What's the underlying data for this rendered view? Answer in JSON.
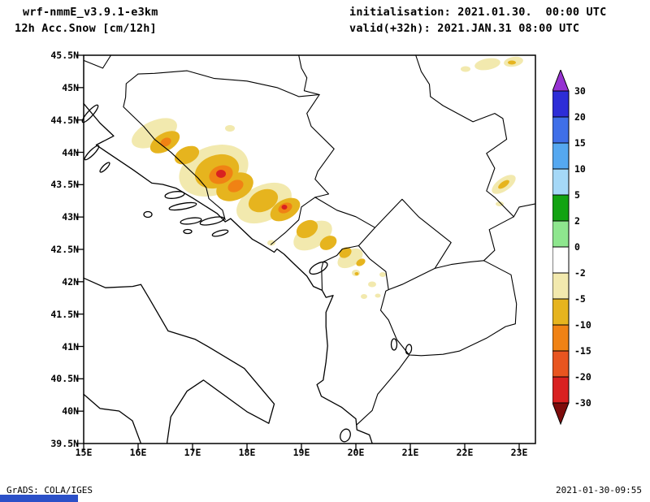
{
  "header": {
    "model": "wrf-nmmE_v3.9.1-e3km",
    "product": "12h Acc.Snow [cm/12h]",
    "init": "initialisation: 2021.01.30.  00:00 UTC",
    "valid": "valid(+32h): 2021.JAN.31 08:00 UTC"
  },
  "axes": {
    "lat_labels": [
      "45.5N",
      "45N",
      "44.5N",
      "44N",
      "43.5N",
      "43N",
      "42.5N",
      "42N",
      "41.5N",
      "41N",
      "40.5N",
      "40N",
      "39.5N"
    ],
    "lon_labels": [
      "15E",
      "16E",
      "17E",
      "18E",
      "19E",
      "20E",
      "21E",
      "22E",
      "23E"
    ]
  },
  "colorbar": {
    "labels": [
      "30",
      "20",
      "15",
      "10",
      "5",
      "2",
      "0",
      "-2",
      "-5",
      "-10",
      "-15",
      "-20",
      "-30"
    ],
    "colors_top_to_bottom": [
      "#9632d2",
      "#2d2dd7",
      "#3f6fe8",
      "#55a8f0",
      "#a5d8f7",
      "#12a312",
      "#8ee68e",
      "#ffffff",
      "#f2e9ae",
      "#e6b41e",
      "#f08214",
      "#e85520",
      "#d92121",
      "#7e0c0c"
    ]
  },
  "shading_colors": {
    "light": "#f2e9ae",
    "medium": "#e6b41e",
    "heavy": "#f08214",
    "extreme": "#d92121"
  },
  "footer": {
    "left": "GrADS: COLA/IGES",
    "right": "2021-01-30-09:55"
  },
  "misc": {
    "blue_bar_color": "#2b50c8"
  }
}
